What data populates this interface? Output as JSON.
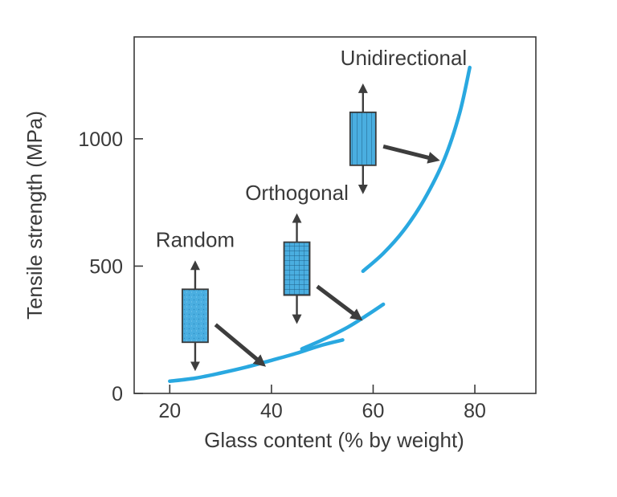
{
  "chart_data": {
    "type": "line",
    "title": "",
    "xlabel": "Glass content (% by weight)",
    "ylabel": "Tensile strength (MPa)",
    "xlim": [
      13,
      92
    ],
    "ylim": [
      0,
      1400
    ],
    "xticks": [
      20,
      40,
      60,
      80
    ],
    "yticks": [
      0,
      500,
      1000
    ],
    "xtick_labels": [
      "20",
      "40",
      "60",
      "80"
    ],
    "ytick_labels": [
      "0",
      "500",
      "1000"
    ],
    "grid": false,
    "series": [
      {
        "name": "Random",
        "color": "#29a8e0",
        "x": [
          20,
          25,
          30,
          35,
          40,
          45,
          50,
          54
        ],
        "y": [
          48,
          60,
          80,
          103,
          130,
          158,
          190,
          210
        ]
      },
      {
        "name": "Orthogonal",
        "color": "#29a8e0",
        "x": [
          46,
          50,
          55,
          59,
          62
        ],
        "y": [
          175,
          210,
          260,
          310,
          350
        ]
      },
      {
        "name": "Unidirectional",
        "color": "#29a8e0",
        "x": [
          58,
          62,
          66,
          70,
          74,
          77,
          79
        ],
        "y": [
          480,
          550,
          640,
          760,
          920,
          1100,
          1280
        ]
      }
    ],
    "annotations": [
      {
        "text": "Random",
        "label_x": 25,
        "label_y": 575,
        "icon_x": 25,
        "icon_y": 305,
        "pattern": "speckle",
        "arrow_from": [
          29,
          270
        ],
        "arrow_to": [
          38,
          120
        ]
      },
      {
        "text": "Orthogonal",
        "label_x": 45,
        "label_y": 760,
        "icon_x": 45,
        "icon_y": 490,
        "pattern": "grid",
        "arrow_from": [
          49,
          420
        ],
        "arrow_to": [
          57,
          300
        ]
      },
      {
        "text": "Unidirectional",
        "label_x": 66,
        "label_y": 1290,
        "icon_x": 58,
        "icon_y": 1000,
        "pattern": "vertical",
        "arrow_from": [
          62,
          970
        ],
        "arrow_to": [
          72,
          920
        ]
      }
    ]
  }
}
